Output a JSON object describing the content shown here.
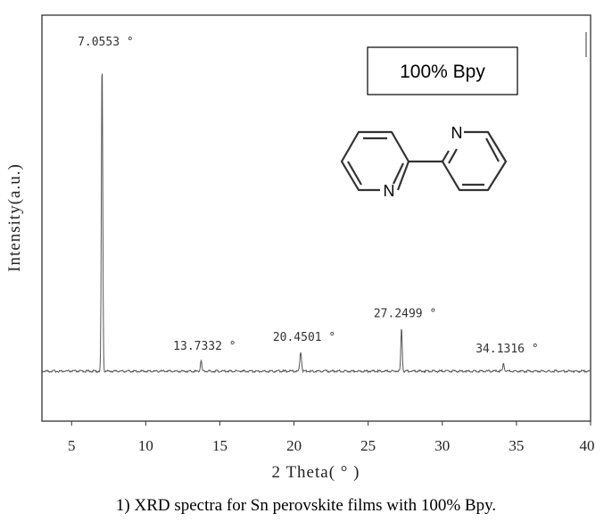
{
  "chart_data": {
    "type": "line",
    "title": "",
    "xlabel": "2 Theta( ° )",
    "ylabel": "Intensity(a.u.)",
    "xlim": [
      3,
      40
    ],
    "xticks": [
      5,
      10,
      15,
      20,
      25,
      30,
      35,
      40
    ],
    "ylim": [
      0,
      100
    ],
    "grid": false,
    "baseline": 13,
    "series": [
      {
        "name": "100% Bpy",
        "peaks": [
          {
            "x": 7.0553,
            "height": 100,
            "width": 0.1,
            "label": "7.0553 °"
          },
          {
            "x": 13.7332,
            "height": 3,
            "width": 0.1,
            "label": "13.7332 °"
          },
          {
            "x": 20.4501,
            "height": 5.5,
            "width": 0.12,
            "label": "20.4501 °"
          },
          {
            "x": 27.2499,
            "height": 12,
            "width": 0.1,
            "label": "27.2499 °"
          },
          {
            "x": 34.1316,
            "height": 2.2,
            "width": 0.1,
            "label": "34.1316 °"
          }
        ]
      }
    ],
    "legend": {
      "text": "100% Bpy",
      "position": "top-right"
    },
    "molecule": {
      "name": "2,2'-bipyridine",
      "atom_labels": [
        "N",
        "N"
      ]
    }
  },
  "caption": "1) XRD spectra for Sn perovskite films with 100% Bpy."
}
